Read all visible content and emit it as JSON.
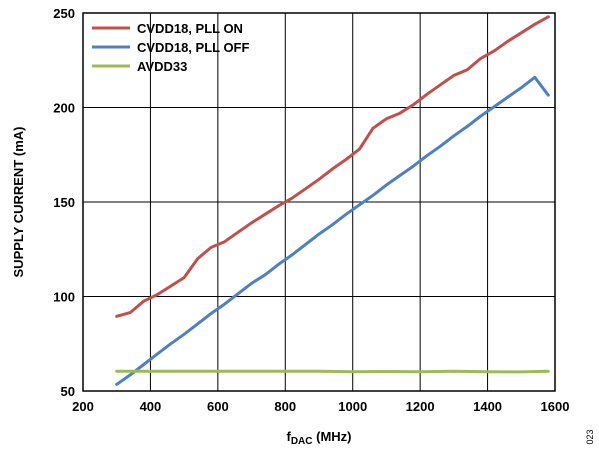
{
  "chart_data": {
    "type": "line",
    "xlabel_main": "f",
    "xlabel_sub": "DAC",
    "xlabel_unit": " (MHz)",
    "ylabel": "SUPPLY CURRENT (mA)",
    "xlim": [
      200,
      1600
    ],
    "ylim": [
      50,
      250
    ],
    "xticks": [
      200,
      400,
      600,
      800,
      1000,
      1200,
      1400,
      1600
    ],
    "yticks": [
      50,
      100,
      150,
      200,
      250
    ],
    "grid": true,
    "legend_position": "top-left",
    "series": [
      {
        "name": "CVDD18, PLL ON",
        "color": "#c0504d",
        "x": [
          300,
          340,
          380,
          420,
          460,
          500,
          540,
          580,
          620,
          660,
          700,
          740,
          780,
          820,
          860,
          900,
          940,
          980,
          1020,
          1060,
          1100,
          1140,
          1180,
          1220,
          1260,
          1300,
          1340,
          1380,
          1420,
          1460,
          1500,
          1540,
          1580
        ],
        "values": [
          89.5,
          91.5,
          97.5,
          101,
          105.5,
          110,
          120,
          126,
          129,
          134,
          139,
          143.5,
          148,
          152,
          157,
          162,
          167.5,
          172.5,
          178,
          189,
          194,
          197,
          201.5,
          207,
          212,
          217,
          220,
          226,
          230,
          235,
          239.5,
          244,
          248
        ]
      },
      {
        "name": "CVDD18, PLL OFF",
        "color": "#4f81bd",
        "x": [
          300,
          340,
          380,
          420,
          460,
          500,
          540,
          580,
          620,
          660,
          700,
          740,
          780,
          820,
          860,
          900,
          940,
          980,
          1020,
          1060,
          1100,
          1140,
          1180,
          1220,
          1260,
          1300,
          1340,
          1380,
          1420,
          1460,
          1500,
          1540,
          1580
        ],
        "values": [
          53.5,
          58.5,
          64,
          69.5,
          75,
          80,
          85.5,
          91,
          96,
          101.5,
          107,
          111.5,
          117,
          122,
          127.5,
          133,
          138,
          143.5,
          148.5,
          153.5,
          159,
          164,
          169,
          174.5,
          179.5,
          185,
          190,
          195.5,
          200.5,
          205.5,
          210.5,
          216,
          206.5
        ]
      },
      {
        "name": "AVDD33",
        "color": "#9bbb59",
        "x": [
          300,
          400,
          500,
          600,
          700,
          800,
          900,
          1000,
          1100,
          1200,
          1300,
          1400,
          1500,
          1580
        ],
        "values": [
          60.5,
          60.5,
          60.5,
          60.5,
          60.5,
          60.5,
          60.5,
          60.2,
          60.3,
          60.2,
          60.4,
          60.2,
          60.1,
          60.5
        ]
      }
    ]
  },
  "figure_code": "023"
}
